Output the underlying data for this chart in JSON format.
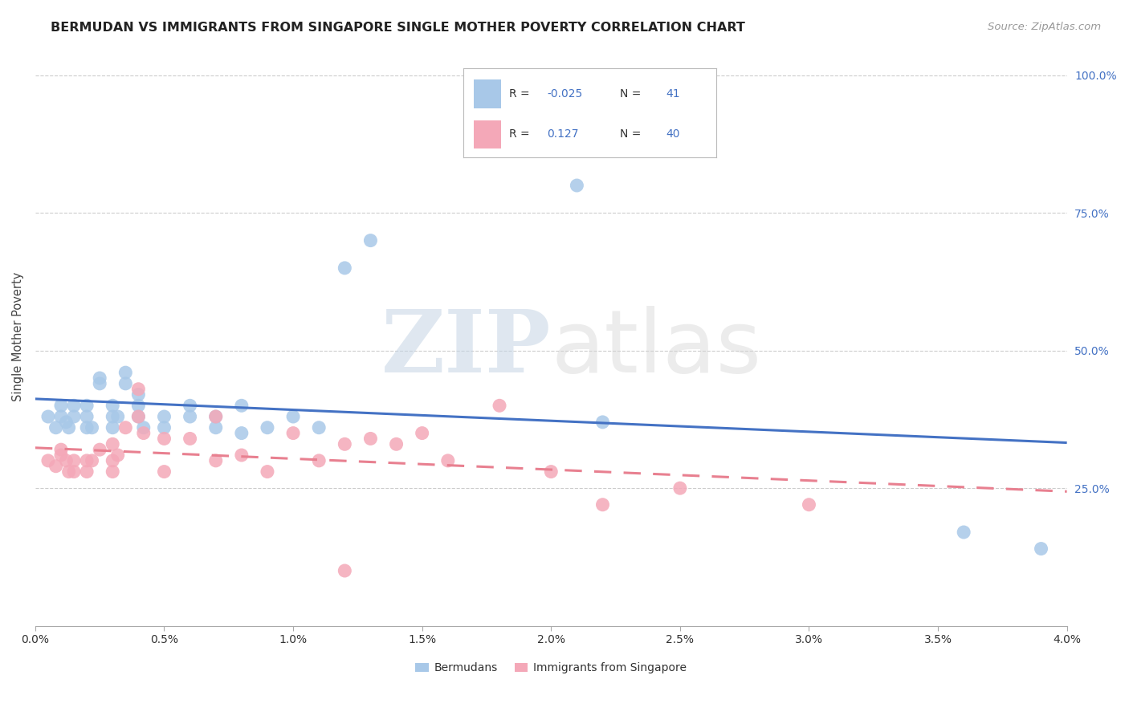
{
  "title": "BERMUDAN VS IMMIGRANTS FROM SINGAPORE SINGLE MOTHER POVERTY CORRELATION CHART",
  "source": "Source: ZipAtlas.com",
  "ylabel": "Single Mother Poverty",
  "watermark_zip": "ZIP",
  "watermark_atlas": "atlas",
  "xlim": [
    0.0,
    0.04
  ],
  "ylim": [
    0.0,
    1.05
  ],
  "blue_color": "#a8c8e8",
  "pink_color": "#f4a8b8",
  "blue_line_color": "#4472c4",
  "pink_line_color": "#e88090",
  "background_color": "#ffffff",
  "grid_color": "#cccccc",
  "legend_r1_val": "-0.025",
  "legend_r2_val": "0.127",
  "legend_n1": "41",
  "legend_n2": "40",
  "legend_text_color": "#333333",
  "legend_val_color": "#4472c4",
  "right_axis_color": "#4472c4",
  "bermudans_x": [
    0.0005,
    0.0008,
    0.001,
    0.001,
    0.0012,
    0.0013,
    0.0015,
    0.0015,
    0.002,
    0.002,
    0.002,
    0.0022,
    0.0025,
    0.0025,
    0.003,
    0.003,
    0.003,
    0.0032,
    0.0035,
    0.0035,
    0.004,
    0.004,
    0.004,
    0.0042,
    0.005,
    0.005,
    0.006,
    0.006,
    0.007,
    0.007,
    0.008,
    0.008,
    0.009,
    0.01,
    0.011,
    0.012,
    0.013,
    0.021,
    0.022,
    0.039,
    0.036
  ],
  "bermudans_y": [
    0.38,
    0.36,
    0.4,
    0.38,
    0.37,
    0.36,
    0.38,
    0.4,
    0.36,
    0.38,
    0.4,
    0.36,
    0.45,
    0.44,
    0.38,
    0.4,
    0.36,
    0.38,
    0.44,
    0.46,
    0.38,
    0.42,
    0.4,
    0.36,
    0.38,
    0.36,
    0.4,
    0.38,
    0.38,
    0.36,
    0.4,
    0.35,
    0.36,
    0.38,
    0.36,
    0.65,
    0.7,
    0.8,
    0.37,
    0.14,
    0.17
  ],
  "singapore_x": [
    0.0005,
    0.0008,
    0.001,
    0.001,
    0.0012,
    0.0013,
    0.0015,
    0.0015,
    0.002,
    0.002,
    0.0022,
    0.0025,
    0.003,
    0.003,
    0.003,
    0.0032,
    0.0035,
    0.004,
    0.004,
    0.0042,
    0.005,
    0.005,
    0.006,
    0.007,
    0.007,
    0.008,
    0.009,
    0.01,
    0.011,
    0.012,
    0.013,
    0.014,
    0.015,
    0.016,
    0.018,
    0.02,
    0.022,
    0.025,
    0.03,
    0.012
  ],
  "singapore_y": [
    0.3,
    0.29,
    0.32,
    0.31,
    0.3,
    0.28,
    0.3,
    0.28,
    0.3,
    0.28,
    0.3,
    0.32,
    0.33,
    0.3,
    0.28,
    0.31,
    0.36,
    0.43,
    0.38,
    0.35,
    0.34,
    0.28,
    0.34,
    0.38,
    0.3,
    0.31,
    0.28,
    0.35,
    0.3,
    0.33,
    0.34,
    0.33,
    0.35,
    0.3,
    0.4,
    0.28,
    0.22,
    0.25,
    0.22,
    0.1
  ]
}
